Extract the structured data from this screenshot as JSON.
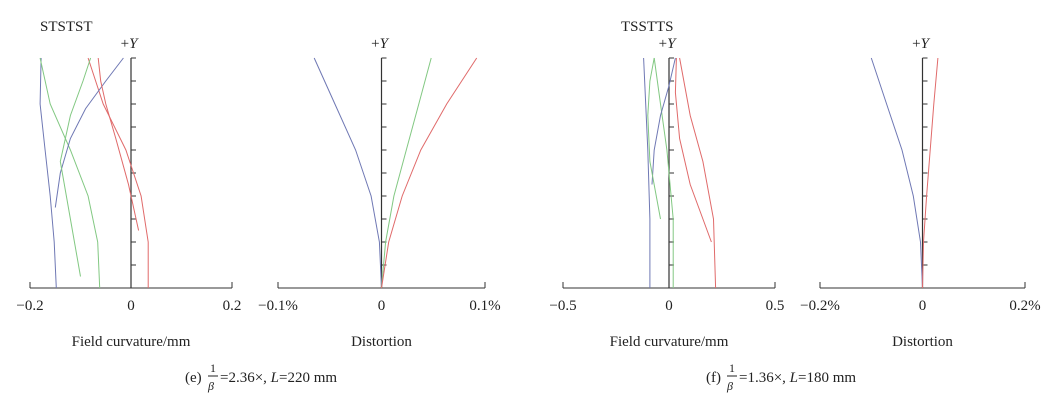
{
  "figure": {
    "panels": [
      {
        "caption": {
          "prefix": "(e)",
          "frac_num": "1",
          "frac_den": "β",
          "suffix_main": "=2.36×, ",
          "suffix_var": "L",
          "suffix_end": "=220 mm"
        },
        "curvature_legend": "STSTST",
        "colors": {
          "blue": "#6f78b4",
          "green": "#82c882",
          "red": "#e06a6a"
        }
      },
      {
        "caption": {
          "prefix": "(f)",
          "frac_num": "1",
          "frac_den": "β",
          "suffix_main": "=1.36×, ",
          "suffix_var": "L",
          "suffix_end": "=180 mm"
        },
        "curvature_legend": "TSSTTS",
        "colors": {
          "blue": "#6f78b4",
          "green": "#82c882",
          "red": "#e06a6a"
        }
      }
    ]
  },
  "chart_data": [
    {
      "type": "line",
      "xlabel": "Field curvature/mm",
      "ylabel": "+Y",
      "xlim": [
        -0.2,
        0.2
      ],
      "ylim": [
        0,
        1
      ],
      "xticks": [
        "−0.2",
        "0",
        "0.2"
      ],
      "series": [
        {
          "color": "#6f78b4",
          "points": [
            [
              -0.148,
              0
            ],
            [
              -0.152,
              0.2
            ],
            [
              -0.16,
              0.4
            ],
            [
              -0.17,
              0.6
            ],
            [
              -0.18,
              0.8
            ],
            [
              -0.178,
              1.0
            ]
          ]
        },
        {
          "color": "#82c882",
          "points": [
            [
              -0.062,
              0
            ],
            [
              -0.066,
              0.2
            ],
            [
              -0.085,
              0.4
            ],
            [
              -0.12,
              0.6
            ],
            [
              -0.16,
              0.8
            ],
            [
              -0.18,
              1.0
            ]
          ]
        },
        {
          "color": "#e06a6a",
          "points": [
            [
              0.034,
              0
            ],
            [
              0.034,
              0.2
            ],
            [
              0.02,
              0.4
            ],
            [
              -0.01,
              0.6
            ],
            [
              -0.055,
              0.8
            ],
            [
              -0.085,
              1.0
            ]
          ]
        },
        {
          "color": "#6f78b4",
          "points": [
            [
              -0.15,
              0.35
            ],
            [
              -0.14,
              0.5
            ],
            [
              -0.12,
              0.65
            ],
            [
              -0.09,
              0.78
            ],
            [
              -0.05,
              0.9
            ],
            [
              -0.015,
              1.0
            ]
          ]
        },
        {
          "color": "#82c882",
          "points": [
            [
              -0.1,
              0.05
            ],
            [
              -0.12,
              0.3
            ],
            [
              -0.14,
              0.55
            ],
            [
              -0.12,
              0.75
            ],
            [
              -0.095,
              0.9
            ],
            [
              -0.08,
              1.0
            ]
          ]
        },
        {
          "color": "#e06a6a",
          "points": [
            [
              0.015,
              0.25
            ],
            [
              -0.005,
              0.45
            ],
            [
              -0.03,
              0.65
            ],
            [
              -0.05,
              0.8
            ],
            [
              -0.06,
              0.9
            ],
            [
              -0.065,
              1.0
            ]
          ]
        }
      ]
    },
    {
      "type": "line",
      "xlabel": "Distortion",
      "ylabel": "+Y",
      "xlim": [
        -0.1,
        0.1
      ],
      "ylim": [
        0,
        1
      ],
      "xticks": [
        "−0.1%",
        "0",
        "0.1%"
      ],
      "series": [
        {
          "color": "#6f78b4",
          "points": [
            [
              0,
              0
            ],
            [
              -0.002,
              0.2
            ],
            [
              -0.01,
              0.4
            ],
            [
              -0.025,
              0.6
            ],
            [
              -0.045,
              0.8
            ],
            [
              -0.065,
              1.0
            ]
          ]
        },
        {
          "color": "#82c882",
          "points": [
            [
              0,
              0
            ],
            [
              0.004,
              0.2
            ],
            [
              0.012,
              0.4
            ],
            [
              0.024,
              0.6
            ],
            [
              0.036,
              0.8
            ],
            [
              0.048,
              1.0
            ]
          ]
        },
        {
          "color": "#e06a6a",
          "points": [
            [
              0,
              0
            ],
            [
              0.007,
              0.2
            ],
            [
              0.02,
              0.4
            ],
            [
              0.038,
              0.6
            ],
            [
              0.063,
              0.8
            ],
            [
              0.092,
              1.0
            ]
          ]
        }
      ]
    },
    {
      "type": "line",
      "xlabel": "Field curvature/mm",
      "ylabel": "+Y",
      "xlim": [
        -0.5,
        0.5
      ],
      "ylim": [
        0,
        1
      ],
      "xticks": [
        "−0.5",
        "0",
        "0.5"
      ],
      "series": [
        {
          "color": "#6f78b4",
          "points": [
            [
              -0.09,
              0
            ],
            [
              -0.09,
              0.3
            ],
            [
              -0.1,
              0.6
            ],
            [
              -0.11,
              0.8
            ],
            [
              -0.12,
              1.0
            ]
          ]
        },
        {
          "color": "#82c882",
          "points": [
            [
              0.02,
              0
            ],
            [
              0.02,
              0.3
            ],
            [
              -0.01,
              0.6
            ],
            [
              -0.04,
              0.8
            ],
            [
              -0.07,
              1.0
            ]
          ]
        },
        {
          "color": "#e06a6a",
          "points": [
            [
              0.22,
              0
            ],
            [
              0.21,
              0.3
            ],
            [
              0.16,
              0.55
            ],
            [
              0.1,
              0.75
            ],
            [
              0.05,
              1.0
            ]
          ]
        },
        {
          "color": "#6f78b4",
          "points": [
            [
              -0.08,
              0.45
            ],
            [
              -0.07,
              0.6
            ],
            [
              -0.04,
              0.75
            ],
            [
              0,
              0.88
            ],
            [
              0.03,
              1.0
            ]
          ]
        },
        {
          "color": "#82c882",
          "points": [
            [
              -0.04,
              0.3
            ],
            [
              -0.09,
              0.55
            ],
            [
              -0.1,
              0.75
            ],
            [
              -0.09,
              0.9
            ],
            [
              -0.07,
              1.0
            ]
          ]
        },
        {
          "color": "#e06a6a",
          "points": [
            [
              0.2,
              0.2
            ],
            [
              0.1,
              0.45
            ],
            [
              0.05,
              0.65
            ],
            [
              0.03,
              0.85
            ],
            [
              0.035,
              1.0
            ]
          ]
        }
      ]
    },
    {
      "type": "line",
      "xlabel": "Distortion",
      "ylabel": "+Y",
      "xlim": [
        -0.2,
        0.2
      ],
      "ylim": [
        0,
        1
      ],
      "xticks": [
        "−0.2%",
        "0",
        "0.2%"
      ],
      "series": [
        {
          "color": "#6f78b4",
          "points": [
            [
              0,
              0
            ],
            [
              -0.004,
              0.2
            ],
            [
              -0.018,
              0.4
            ],
            [
              -0.04,
              0.6
            ],
            [
              -0.07,
              0.8
            ],
            [
              -0.1,
              1.0
            ]
          ]
        },
        {
          "color": "#e06a6a",
          "points": [
            [
              0,
              0
            ],
            [
              0.002,
              0.2
            ],
            [
              0.008,
              0.4
            ],
            [
              0.015,
              0.6
            ],
            [
              0.022,
              0.8
            ],
            [
              0.03,
              1.0
            ]
          ]
        }
      ]
    }
  ]
}
